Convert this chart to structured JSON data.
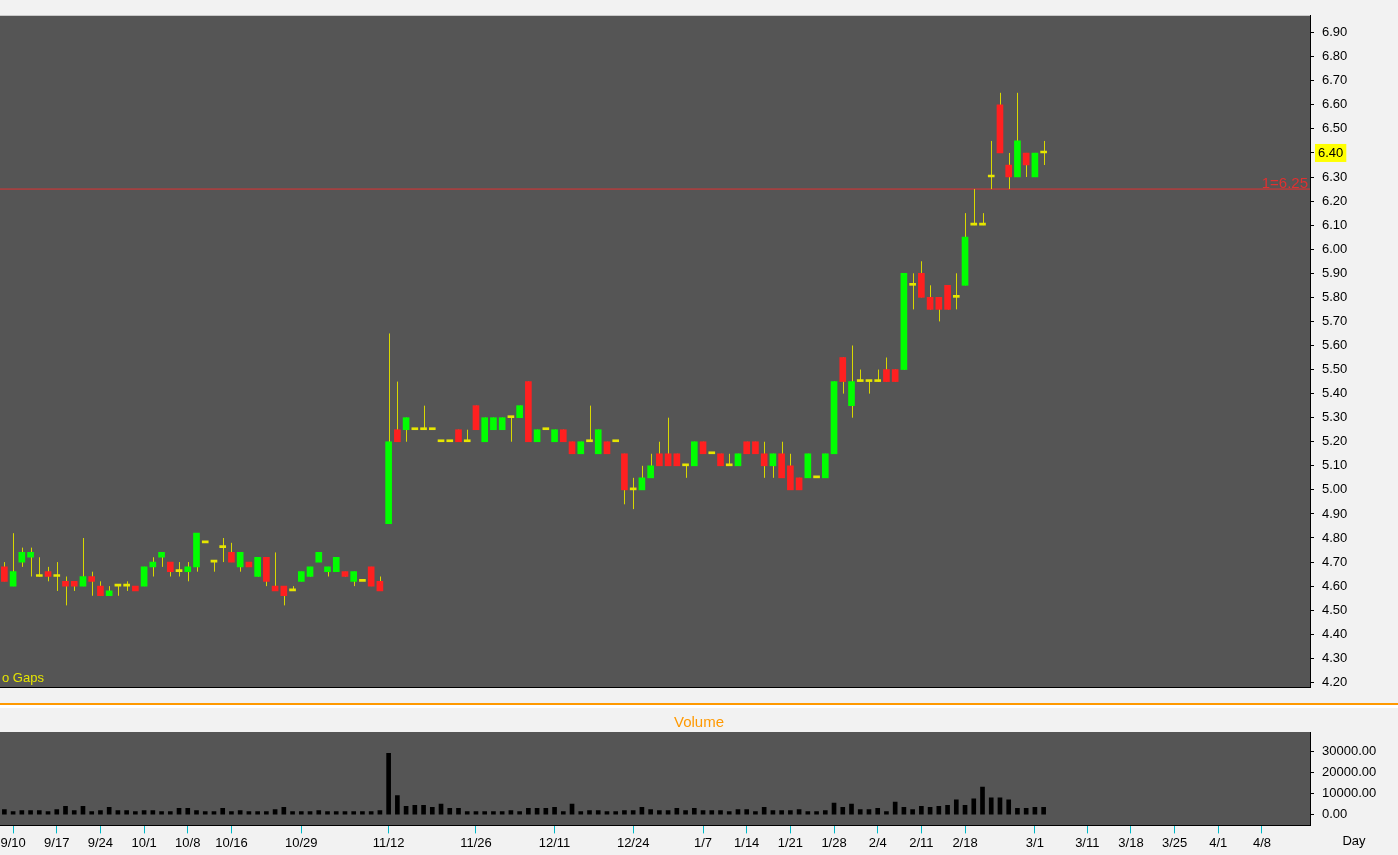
{
  "chart_data": [
    {
      "type": "candlestick",
      "categories": [
        null,
        null,
        null,
        null,
        null,
        null,
        null,
        null,
        null,
        null,
        null,
        null,
        null,
        null,
        null,
        null,
        null,
        null,
        null,
        null,
        null,
        null,
        null,
        null,
        null,
        null,
        null,
        null,
        null,
        null,
        null,
        null,
        null,
        null,
        null,
        null,
        null,
        null,
        null,
        null,
        null,
        null,
        null,
        null,
        null,
        null,
        null,
        null,
        null,
        null,
        null,
        null,
        null,
        null,
        null,
        null,
        null,
        null,
        null,
        null,
        null,
        null,
        null,
        null,
        null,
        null,
        null,
        null,
        null,
        null,
        null,
        null,
        null,
        null,
        null,
        null,
        null,
        null,
        null,
        null,
        null,
        null,
        null,
        null,
        null,
        null,
        null,
        null,
        null,
        null,
        null,
        null,
        null,
        null,
        null,
        null,
        null,
        null,
        null,
        null,
        null,
        null,
        null,
        null,
        null,
        null,
        null,
        null,
        null,
        null,
        null,
        null,
        null,
        null,
        null,
        null,
        null,
        null,
        null,
        null,
        null,
        null,
        null,
        null,
        null,
        null,
        null,
        null,
        null,
        null,
        null,
        null,
        null,
        null,
        null,
        null,
        null,
        null,
        null,
        null,
        null,
        null,
        null,
        null,
        null,
        null,
        null,
        null,
        null,
        null
      ],
      "ohlc": [
        [
          4.68,
          4.7,
          4.62,
          4.62
        ],
        [
          4.6,
          4.82,
          4.6,
          4.66
        ],
        [
          4.7,
          4.76,
          4.68,
          4.74
        ],
        [
          4.72,
          4.76,
          4.64,
          4.74
        ],
        [
          4.64,
          4.72,
          4.64,
          4.64
        ],
        [
          4.66,
          4.68,
          4.62,
          4.64
        ],
        [
          4.64,
          4.7,
          4.58,
          4.64
        ],
        [
          4.62,
          4.64,
          4.52,
          4.6
        ],
        [
          4.62,
          4.62,
          4.58,
          4.6
        ],
        [
          4.6,
          4.8,
          4.6,
          4.64
        ],
        [
          4.64,
          4.66,
          4.56,
          4.62
        ],
        [
          4.6,
          4.62,
          4.56,
          4.56
        ],
        [
          4.56,
          4.6,
          4.56,
          4.58
        ],
        [
          4.6,
          4.6,
          4.56,
          4.6
        ],
        [
          4.6,
          4.62,
          4.58,
          4.6
        ],
        [
          4.6,
          4.6,
          4.58,
          4.58
        ],
        [
          4.6,
          4.68,
          4.6,
          4.68
        ],
        [
          4.68,
          4.72,
          4.64,
          4.7
        ],
        [
          4.72,
          4.74,
          4.68,
          4.74
        ],
        [
          4.7,
          4.7,
          4.64,
          4.66
        ],
        [
          4.66,
          4.7,
          4.64,
          4.66
        ],
        [
          4.66,
          4.7,
          4.62,
          4.68
        ],
        [
          4.68,
          4.82,
          4.66,
          4.82
        ],
        [
          4.78,
          4.78,
          4.78,
          4.78
        ],
        [
          4.7,
          4.7,
          4.66,
          4.7
        ],
        [
          4.76,
          4.8,
          4.7,
          4.76
        ],
        [
          4.74,
          4.78,
          4.7,
          4.7
        ],
        [
          4.68,
          4.74,
          4.66,
          4.74
        ],
        [
          4.7,
          4.7,
          4.68,
          4.68
        ],
        [
          4.64,
          4.72,
          4.64,
          4.72
        ],
        [
          4.72,
          4.72,
          4.6,
          4.62
        ],
        [
          4.6,
          4.74,
          4.58,
          4.58
        ],
        [
          4.6,
          4.6,
          4.52,
          4.56
        ],
        [
          4.58,
          4.6,
          4.58,
          4.58
        ],
        [
          4.62,
          4.66,
          4.62,
          4.66
        ],
        [
          4.64,
          4.68,
          4.64,
          4.68
        ],
        [
          4.7,
          4.74,
          4.7,
          4.74
        ],
        [
          4.66,
          4.68,
          4.64,
          4.68
        ],
        [
          4.66,
          4.72,
          4.66,
          4.72
        ],
        [
          4.66,
          4.66,
          4.64,
          4.64
        ],
        [
          4.62,
          4.66,
          4.6,
          4.66
        ],
        [
          4.62,
          4.62,
          4.62,
          4.62
        ],
        [
          4.68,
          4.68,
          4.6,
          4.6
        ],
        [
          4.62,
          4.64,
          4.58,
          4.58
        ],
        [
          4.86,
          5.65,
          4.86,
          5.2
        ],
        [
          5.25,
          5.45,
          5.2,
          5.2
        ],
        [
          5.25,
          5.3,
          5.2,
          5.3
        ],
        [
          5.25,
          5.25,
          5.25,
          5.25
        ],
        [
          5.25,
          5.35,
          5.25,
          5.25
        ],
        [
          5.25,
          5.25,
          5.25,
          5.25
        ],
        [
          5.2,
          5.2,
          5.2,
          5.2
        ],
        [
          5.2,
          5.2,
          5.2,
          5.2
        ],
        [
          5.25,
          5.25,
          5.2,
          5.2
        ],
        [
          5.2,
          5.25,
          5.2,
          5.2
        ],
        [
          5.35,
          5.35,
          5.25,
          5.25
        ],
        [
          5.2,
          5.3,
          5.2,
          5.3
        ],
        [
          5.25,
          5.3,
          5.25,
          5.3
        ],
        [
          5.25,
          5.3,
          5.25,
          5.3
        ],
        [
          5.3,
          5.3,
          5.2,
          5.3
        ],
        [
          5.3,
          5.35,
          5.3,
          5.35
        ],
        [
          5.45,
          5.45,
          5.2,
          5.2
        ],
        [
          5.2,
          5.25,
          5.2,
          5.25
        ],
        [
          5.25,
          5.25,
          5.25,
          5.25
        ],
        [
          5.2,
          5.25,
          5.2,
          5.25
        ],
        [
          5.25,
          5.25,
          5.2,
          5.2
        ],
        [
          5.2,
          5.2,
          5.15,
          5.15
        ],
        [
          5.15,
          5.2,
          5.15,
          5.2
        ],
        [
          5.2,
          5.35,
          5.2,
          5.2
        ],
        [
          5.15,
          5.25,
          5.15,
          5.25
        ],
        [
          5.2,
          5.2,
          5.15,
          5.15
        ],
        [
          5.2,
          5.2,
          5.2,
          5.2
        ],
        [
          5.15,
          5.15,
          4.94,
          5.0
        ],
        [
          5.0,
          5.05,
          4.92,
          5.0
        ],
        [
          5.0,
          5.1,
          5.0,
          5.05
        ],
        [
          5.05,
          5.15,
          5.05,
          5.1
        ],
        [
          5.15,
          5.2,
          5.1,
          5.1
        ],
        [
          5.15,
          5.3,
          5.1,
          5.1
        ],
        [
          5.15,
          5.15,
          5.1,
          5.1
        ],
        [
          5.1,
          5.1,
          5.05,
          5.1
        ],
        [
          5.1,
          5.2,
          5.1,
          5.2
        ],
        [
          5.2,
          5.2,
          5.15,
          5.15
        ],
        [
          5.15,
          5.15,
          5.15,
          5.15
        ],
        [
          5.15,
          5.15,
          5.1,
          5.1
        ],
        [
          5.1,
          5.15,
          5.1,
          5.1
        ],
        [
          5.1,
          5.15,
          5.1,
          5.15
        ],
        [
          5.2,
          5.2,
          5.15,
          5.15
        ],
        [
          5.2,
          5.2,
          5.15,
          5.15
        ],
        [
          5.15,
          5.2,
          5.05,
          5.1
        ],
        [
          5.1,
          5.15,
          5.05,
          5.15
        ],
        [
          5.15,
          5.2,
          5.05,
          5.05
        ],
        [
          5.1,
          5.15,
          5.0,
          5.0
        ],
        [
          5.05,
          5.05,
          5.0,
          5.0
        ],
        [
          5.05,
          5.15,
          5.05,
          5.15
        ],
        [
          5.05,
          5.05,
          5.05,
          5.05
        ],
        [
          5.05,
          5.15,
          5.05,
          5.15
        ],
        [
          5.15,
          5.45,
          5.15,
          5.45
        ],
        [
          5.55,
          5.55,
          5.4,
          5.45
        ],
        [
          5.35,
          5.6,
          5.3,
          5.45
        ],
        [
          5.45,
          5.5,
          5.45,
          5.45
        ],
        [
          5.45,
          5.45,
          5.4,
          5.45
        ],
        [
          5.45,
          5.5,
          5.45,
          5.45
        ],
        [
          5.5,
          5.55,
          5.45,
          5.45
        ],
        [
          5.5,
          5.5,
          5.45,
          5.45
        ],
        [
          5.5,
          5.9,
          5.5,
          5.9
        ],
        [
          5.85,
          5.9,
          5.75,
          5.85
        ],
        [
          5.9,
          5.95,
          5.8,
          5.8
        ],
        [
          5.8,
          5.85,
          5.75,
          5.75
        ],
        [
          5.8,
          5.8,
          5.7,
          5.75
        ],
        [
          5.85,
          5.85,
          5.75,
          5.75
        ],
        [
          5.8,
          5.9,
          5.75,
          5.8
        ],
        [
          5.85,
          6.15,
          5.85,
          6.05
        ],
        [
          6.1,
          6.25,
          6.1,
          6.1
        ],
        [
          6.1,
          6.15,
          6.1,
          6.1
        ],
        [
          6.3,
          6.45,
          6.25,
          6.3
        ],
        [
          6.6,
          6.65,
          6.4,
          6.4
        ],
        [
          6.35,
          6.4,
          6.25,
          6.3
        ],
        [
          6.3,
          6.65,
          6.3,
          6.45
        ],
        [
          6.4,
          6.4,
          6.3,
          6.35
        ],
        [
          6.3,
          6.4,
          6.3,
          6.4
        ],
        [
          6.4,
          6.45,
          6.35,
          6.4
        ],
        null,
        null,
        null,
        null,
        null,
        null,
        null,
        null,
        null,
        null,
        null,
        null,
        null,
        null,
        null,
        null,
        null,
        null,
        null,
        null,
        null,
        null,
        null,
        null,
        null,
        null,
        null,
        null,
        null,
        null
      ],
      "colors": [
        "#ff2020",
        "#00ff00",
        "#00ff00",
        "#00ff00",
        "#e6e600",
        "#ff2020",
        "#e6e600",
        "#ff2020",
        "#ff2020",
        "#00ff00",
        "#ff2020",
        "#ff2020",
        "#00ff00",
        "#e6e600",
        "#e6e600",
        "#ff2020",
        "#00ff00",
        "#00ff00",
        "#00ff00",
        "#ff2020",
        "#e6e600",
        "#00ff00",
        "#00ff00",
        "#e6e600",
        "#e6e600",
        "#e6e600",
        "#ff2020",
        "#00ff00",
        "#ff2020",
        "#00ff00",
        "#ff2020",
        "#ff2020",
        "#ff2020",
        "#e6e600",
        "#00ff00",
        "#00ff00",
        "#00ff00",
        "#00ff00",
        "#00ff00",
        "#ff2020",
        "#00ff00",
        "#e6e600",
        "#ff2020",
        "#ff2020",
        "#00ff00",
        "#ff2020",
        "#00ff00",
        "#e6e600",
        "#e6e600",
        "#e6e600",
        "#e6e600",
        "#e6e600",
        "#ff2020",
        "#e6e600",
        "#ff2020",
        "#00ff00",
        "#00ff00",
        "#00ff00",
        "#e6e600",
        "#00ff00",
        "#ff2020",
        "#00ff00",
        "#e6e600",
        "#00ff00",
        "#ff2020",
        "#ff2020",
        "#00ff00",
        "#e6e600",
        "#00ff00",
        "#ff2020",
        "#e6e600",
        "#ff2020",
        "#e6e600",
        "#00ff00",
        "#00ff00",
        "#ff2020",
        "#ff2020",
        "#ff2020",
        "#e6e600",
        "#00ff00",
        "#ff2020",
        "#e6e600",
        "#ff2020",
        "#e6e600",
        "#00ff00",
        "#ff2020",
        "#ff2020",
        "#ff2020",
        "#00ff00",
        "#ff2020",
        "#ff2020",
        "#ff2020",
        "#00ff00",
        "#e6e600",
        "#00ff00",
        "#00ff00",
        "#ff2020",
        "#00ff00",
        "#e6e600",
        "#e6e600",
        "#e6e600",
        "#ff2020",
        "#ff2020",
        "#00ff00",
        "#e6e600",
        "#ff2020",
        "#ff2020",
        "#ff2020",
        "#ff2020",
        "#e6e600",
        "#00ff00",
        "#e6e600",
        "#e6e600",
        "#e6e600",
        "#ff2020",
        "#ff2020",
        "#00ff00",
        "#ff2020",
        "#00ff00",
        "#e6e600",
        null,
        null,
        null,
        null,
        null,
        null,
        null,
        null,
        null,
        null,
        null,
        null,
        null,
        null,
        null,
        null,
        null,
        null,
        null,
        null,
        null,
        null,
        null,
        null,
        null,
        null,
        null,
        null,
        null,
        null
      ],
      "color": "#d8d800",
      "ylim": [
        4.18,
        6.97
      ],
      "yticks": [
        {
          "value": 4.2,
          "label": "4.20"
        },
        {
          "value": 4.3,
          "label": "4.30"
        },
        {
          "value": 4.4,
          "label": "4.40"
        },
        {
          "value": 4.5,
          "label": "4.50"
        },
        {
          "value": 4.6,
          "label": "4.60"
        },
        {
          "value": 4.7,
          "label": "4.70"
        },
        {
          "value": 4.8,
          "label": "4.80"
        },
        {
          "value": 4.9,
          "label": "4.90"
        },
        {
          "value": 5.0,
          "label": "5.00"
        },
        {
          "value": 5.1,
          "label": "5.10"
        },
        {
          "value": 5.2,
          "label": "5.20"
        },
        {
          "value": 5.3,
          "label": "5.30"
        },
        {
          "value": 5.4,
          "label": "5.40"
        },
        {
          "value": 5.5,
          "label": "5.50"
        },
        {
          "value": 5.6,
          "label": "5.60"
        },
        {
          "value": 5.7,
          "label": "5.70"
        },
        {
          "value": 5.8,
          "label": "5.80"
        },
        {
          "value": 5.9,
          "label": "5.90"
        },
        {
          "value": 6.0,
          "label": "6.00"
        },
        {
          "value": 6.1,
          "label": "6.10"
        },
        {
          "value": 6.2,
          "label": "6.20"
        },
        {
          "value": 6.3,
          "label": "6.30"
        },
        {
          "value": 6.4,
          "label": null
        },
        {
          "value": 6.5,
          "label": "6.50"
        },
        {
          "value": 6.6,
          "label": "6.60"
        },
        {
          "value": 6.7,
          "label": "6.70"
        },
        {
          "value": 6.8,
          "label": "6.80"
        },
        {
          "value": 6.9,
          "label": "6.90"
        }
      ],
      "tick_labels": "y",
      "ref_lines": [
        {
          "axis": "y",
          "value": 6.25,
          "label": "1=6.25",
          "color": "#e03030"
        }
      ],
      "annotations": [
        "o Gaps",
        "6.40"
      ]
    },
    {
      "type": "bar",
      "title": "Volume",
      "categories": [
        null,
        "9/10",
        null,
        null,
        null,
        null,
        "9/17",
        null,
        null,
        null,
        null,
        "9/24",
        null,
        null,
        null,
        null,
        "10/1",
        null,
        null,
        null,
        null,
        "10/8",
        null,
        null,
        null,
        null,
        "10/16",
        null,
        null,
        null,
        null,
        null,
        null,
        null,
        "10/29",
        null,
        null,
        null,
        null,
        null,
        null,
        null,
        null,
        null,
        "11/12",
        null,
        null,
        null,
        null,
        null,
        null,
        null,
        null,
        null,
        "11/26",
        null,
        null,
        null,
        null,
        null,
        null,
        null,
        null,
        "12/11",
        null,
        null,
        null,
        null,
        null,
        null,
        null,
        null,
        "12/24",
        null,
        null,
        null,
        null,
        null,
        null,
        null,
        "1/7",
        null,
        null,
        null,
        null,
        "1/14",
        null,
        null,
        null,
        null,
        "1/21",
        null,
        null,
        null,
        null,
        "1/28",
        null,
        null,
        null,
        null,
        "2/4",
        null,
        null,
        null,
        null,
        "2/11",
        null,
        null,
        null,
        null,
        "2/18",
        null,
        null,
        null,
        null,
        null,
        null,
        null,
        "3/1",
        null,
        null,
        null,
        null,
        null,
        "3/11",
        null,
        null,
        null,
        null,
        "3/18",
        null,
        null,
        null,
        null,
        "3/25",
        null,
        null,
        null,
        null,
        "4/1",
        null,
        null,
        null,
        null,
        "4/8",
        null,
        null,
        null,
        null,
        null
      ],
      "values": [
        2500,
        1500,
        2000,
        2000,
        2000,
        1500,
        2500,
        4000,
        2000,
        4000,
        1500,
        2000,
        3500,
        2000,
        2000,
        1500,
        2000,
        2000,
        1500,
        1500,
        3000,
        3000,
        2000,
        1500,
        1500,
        3000,
        1500,
        2000,
        1500,
        1500,
        1500,
        2500,
        3500,
        1500,
        1500,
        1500,
        2000,
        1500,
        1500,
        1500,
        1500,
        1500,
        1500,
        2000,
        29000,
        9000,
        4000,
        4500,
        4500,
        3500,
        5000,
        3000,
        3000,
        1500,
        1500,
        1500,
        1500,
        1500,
        2000,
        1500,
        3000,
        3000,
        3000,
        3500,
        1500,
        5000,
        1500,
        2000,
        2000,
        1500,
        1500,
        2000,
        2000,
        3500,
        2500,
        2000,
        2000,
        3000,
        2000,
        3000,
        2000,
        2000,
        2000,
        1500,
        2500,
        2500,
        1500,
        3500,
        2000,
        2000,
        2000,
        2500,
        1500,
        1500,
        2000,
        5500,
        3500,
        5000,
        2500,
        2500,
        3000,
        1500,
        6000,
        3500,
        2500,
        4000,
        3500,
        4000,
        4500,
        7000,
        4500,
        7500,
        13000,
        8000,
        8000,
        7000,
        3000,
        3000,
        3500,
        3500,
        null,
        null,
        null,
        null,
        null,
        null,
        null,
        null,
        null,
        null,
        null,
        null,
        null,
        null,
        null,
        null,
        null,
        null,
        null,
        null,
        null,
        null,
        null,
        null,
        null,
        null,
        null,
        null,
        null,
        null
      ],
      "color": "#000000",
      "ylim": [
        -5000,
        39000
      ],
      "yticks": [
        {
          "value": 0,
          "label": "0.00"
        },
        {
          "value": 10000,
          "label": "10000.00"
        },
        {
          "value": 20000,
          "label": "20000.00"
        },
        {
          "value": 30000,
          "label": "30000.00"
        }
      ],
      "xlabel": "Day"
    }
  ]
}
